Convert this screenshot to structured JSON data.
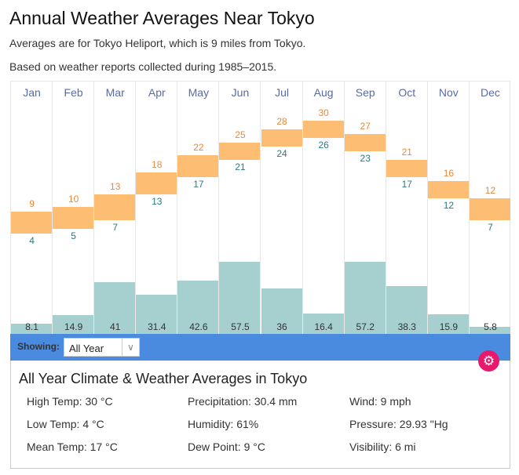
{
  "title": "Annual Weather Averages Near Tokyo",
  "subtitle1": "Averages are for Tokyo Heliport, which is 9 miles from Tokyo.",
  "subtitle2": "Based on weather reports collected during 1985–2015.",
  "chart_data": {
    "type": "bar",
    "categories": [
      "Jan",
      "Feb",
      "Mar",
      "Apr",
      "May",
      "Jun",
      "Jul",
      "Aug",
      "Sep",
      "Oct",
      "Nov",
      "Dec"
    ],
    "series": [
      {
        "name": "High Temp (°C)",
        "values": [
          9,
          10,
          13,
          18,
          22,
          25,
          28,
          30,
          27,
          21,
          16,
          12
        ]
      },
      {
        "name": "Low Temp (°C)",
        "values": [
          4,
          5,
          7,
          13,
          17,
          21,
          24,
          26,
          23,
          17,
          12,
          7
        ]
      },
      {
        "name": "Precipitation (mm)",
        "values": [
          8.1,
          14.9,
          41,
          31.4,
          42.6,
          57.5,
          36,
          16.4,
          57.2,
          38.3,
          15.9,
          5.8
        ]
      }
    ],
    "colors": {
      "temp": "#fdbd73",
      "precip": "#a6d0cf",
      "high_text": "#e8893a",
      "low_text": "#2a7c80"
    }
  },
  "filter": {
    "label": "Showing:",
    "value": "All Year"
  },
  "info": {
    "title": "All Year Climate & Weather Averages in Tokyo",
    "stats": [
      "High Temp: 30 °C",
      "Precipitation: 30.4 mm",
      "Wind: 9 mph",
      "Low Temp: 4 °C",
      "Humidity: 61%",
      "Pressure: 29.93 \"Hg",
      "Mean Temp: 17 °C",
      "Dew Point: 9 °C",
      "Visibility: 6 mi"
    ]
  }
}
